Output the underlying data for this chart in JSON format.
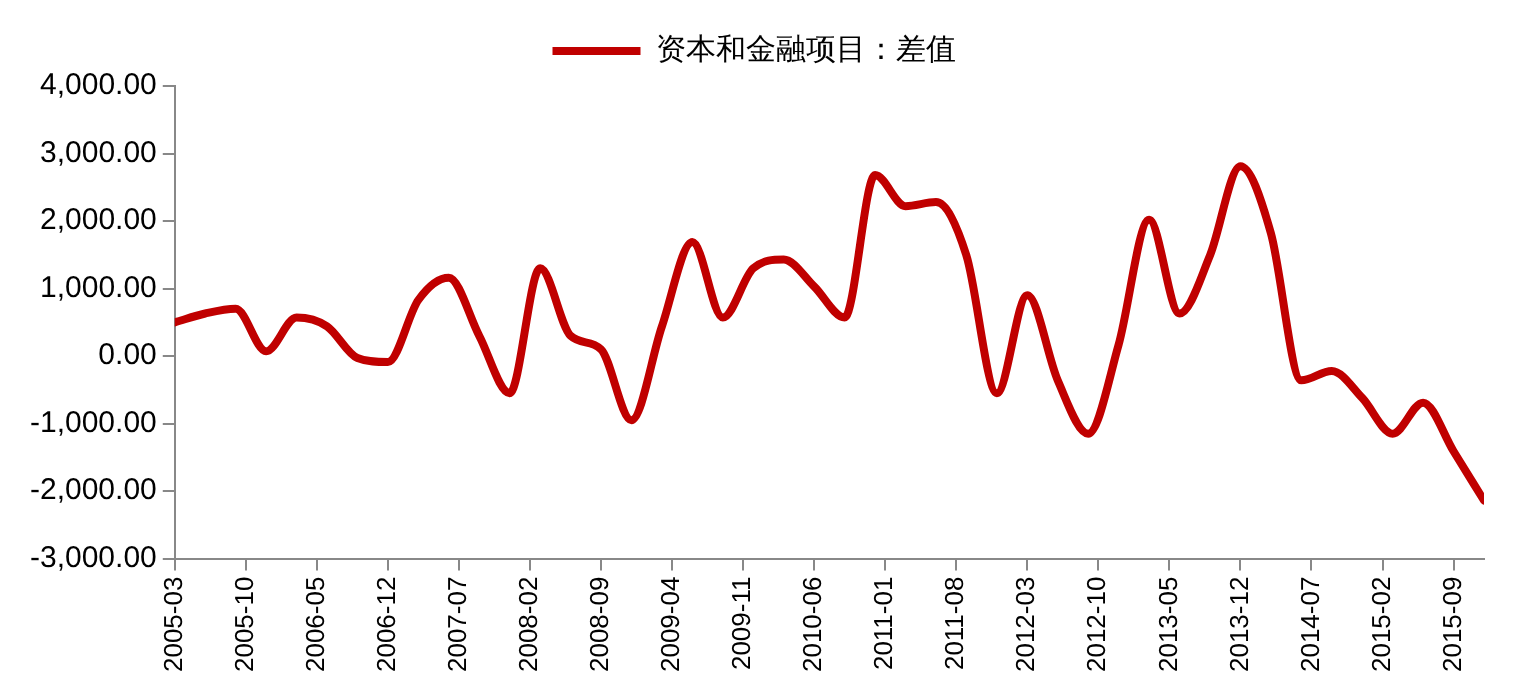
{
  "chart_data": {
    "type": "line",
    "x": [
      "2005-03",
      "2005-06",
      "2005-09",
      "2005-12",
      "2006-03",
      "2006-06",
      "2006-09",
      "2006-12",
      "2007-03",
      "2007-06",
      "2007-09",
      "2007-12",
      "2008-03",
      "2008-06",
      "2008-09",
      "2008-12",
      "2009-03",
      "2009-06",
      "2009-09",
      "2009-12",
      "2010-03",
      "2010-06",
      "2010-09",
      "2010-12",
      "2011-03",
      "2011-06",
      "2011-09",
      "2011-12",
      "2012-03",
      "2012-06",
      "2012-09",
      "2012-12",
      "2013-03",
      "2013-06",
      "2013-09",
      "2013-12",
      "2014-03",
      "2014-06",
      "2014-09",
      "2014-12",
      "2015-03",
      "2015-06",
      "2015-09",
      "2015-12"
    ],
    "series": [
      {
        "name": "资本和金融项目：差值",
        "color": "#c00000",
        "values": [
          500,
          630,
          700,
          70,
          570,
          440,
          -30,
          -90,
          830,
          1160,
          300,
          -550,
          1300,
          300,
          100,
          -950,
          440,
          1690,
          570,
          1300,
          1430,
          1030,
          570,
          2680,
          2220,
          2280,
          1490,
          -550,
          900,
          -360,
          -1150,
          170,
          2020,
          630,
          1490,
          2810,
          1820,
          -360,
          -220,
          -620,
          -1150,
          -690,
          -1410,
          -2140
        ]
      }
    ],
    "xlim": [
      "2005-03",
      "2015-12"
    ],
    "xticks": [
      "2005-03",
      "2005-10",
      "2006-05",
      "2006-12",
      "2007-07",
      "2008-02",
      "2008-09",
      "2009-04",
      "2009-11",
      "2010-06",
      "2011-01",
      "2011-08",
      "2012-03",
      "2012-10",
      "2013-05",
      "2013-12",
      "2014-07",
      "2015-02",
      "2015-09"
    ],
    "ylim": [
      -3000,
      4000
    ],
    "yticks": [
      {
        "value": -3000,
        "label": "-3,000.00"
      },
      {
        "value": -2000,
        "label": "-2,000.00"
      },
      {
        "value": -1000,
        "label": "-1,000.00"
      },
      {
        "value": 0,
        "label": "0.00"
      },
      {
        "value": 1000,
        "label": "1,000.00"
      },
      {
        "value": 2000,
        "label": "2,000.00"
      },
      {
        "value": 3000,
        "label": "3,000.00"
      },
      {
        "value": 4000,
        "label": "4,000.00"
      }
    ],
    "grid": false,
    "legend": "top",
    "marker": "none",
    "line_style": "solid"
  }
}
